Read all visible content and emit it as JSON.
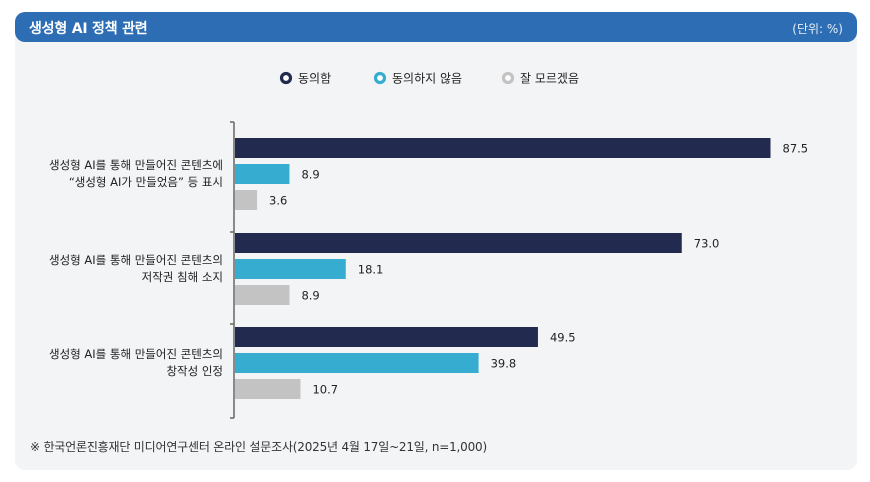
{
  "header": {
    "title": "생성형 AI 정책 관련",
    "unit": "(단위: %)"
  },
  "footnote": "※ 한국언론진흥재단 미디어연구센터 온라인 설문조사(2025년 4월 17일~21일, n=1,000)",
  "chart_data": {
    "type": "bar",
    "orientation": "horizontal",
    "categories": [
      [
        "생성형 AI를 통해 만들어진 콘텐츠에",
        "“생성형 AI가 만들었음” 등 표시"
      ],
      [
        "생성형 AI를 통해 만들어진 콘텐츠의",
        "저작권 침해 소지"
      ],
      [
        "생성형 AI를 통해 만들어진 콘텐츠의",
        "창작성 인정"
      ]
    ],
    "series": [
      {
        "name": "동의함",
        "color": "#232a4f",
        "values": [
          87.5,
          73.0,
          49.5
        ]
      },
      {
        "name": "동의하지 않음",
        "color": "#36acd0",
        "values": [
          8.9,
          18.1,
          39.8
        ]
      },
      {
        "name": "잘 모르겠음",
        "color": "#c3c3c3",
        "values": [
          3.6,
          8.9,
          10.7
        ]
      }
    ],
    "value_labels": [
      [
        "87.5",
        "8.9",
        "3.6"
      ],
      [
        "73.0",
        "18.1",
        "8.9"
      ],
      [
        "49.5",
        "39.8",
        "10.7"
      ]
    ],
    "xlim": [
      0,
      100
    ],
    "legend_position": "top-center",
    "grid": false
  }
}
